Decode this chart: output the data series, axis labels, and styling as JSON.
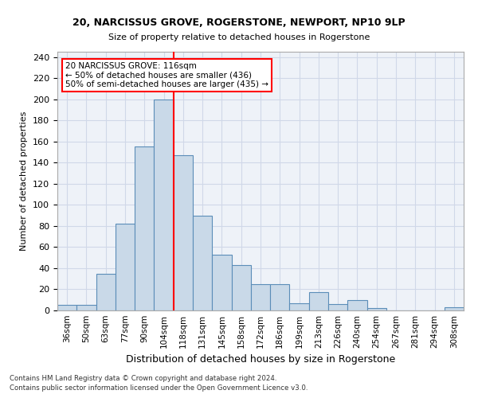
{
  "title1": "20, NARCISSUS GROVE, ROGERSTONE, NEWPORT, NP10 9LP",
  "title2": "Size of property relative to detached houses in Rogerstone",
  "xlabel": "Distribution of detached houses by size in Rogerstone",
  "ylabel": "Number of detached properties",
  "categories": [
    "36sqm",
    "50sqm",
    "63sqm",
    "77sqm",
    "90sqm",
    "104sqm",
    "118sqm",
    "131sqm",
    "145sqm",
    "158sqm",
    "172sqm",
    "186sqm",
    "199sqm",
    "213sqm",
    "226sqm",
    "240sqm",
    "254sqm",
    "267sqm",
    "281sqm",
    "294sqm",
    "308sqm"
  ],
  "values": [
    5,
    5,
    35,
    82,
    155,
    200,
    147,
    90,
    53,
    43,
    25,
    25,
    7,
    17,
    6,
    10,
    2,
    0,
    0,
    0,
    3
  ],
  "bar_color": "#c9d9e8",
  "bar_edge_color": "#5b8db8",
  "red_line_index": 5.5,
  "annotation_text": "20 NARCISSUS GROVE: 116sqm\n← 50% of detached houses are smaller (436)\n50% of semi-detached houses are larger (435) →",
  "annotation_box_color": "white",
  "annotation_box_edge": "red",
  "grid_color": "#d0d8e8",
  "background_color": "#eef2f8",
  "footer1": "Contains HM Land Registry data © Crown copyright and database right 2024.",
  "footer2": "Contains public sector information licensed under the Open Government Licence v3.0.",
  "ylim": [
    0,
    245
  ],
  "yticks": [
    0,
    20,
    40,
    60,
    80,
    100,
    120,
    140,
    160,
    180,
    200,
    220,
    240
  ]
}
